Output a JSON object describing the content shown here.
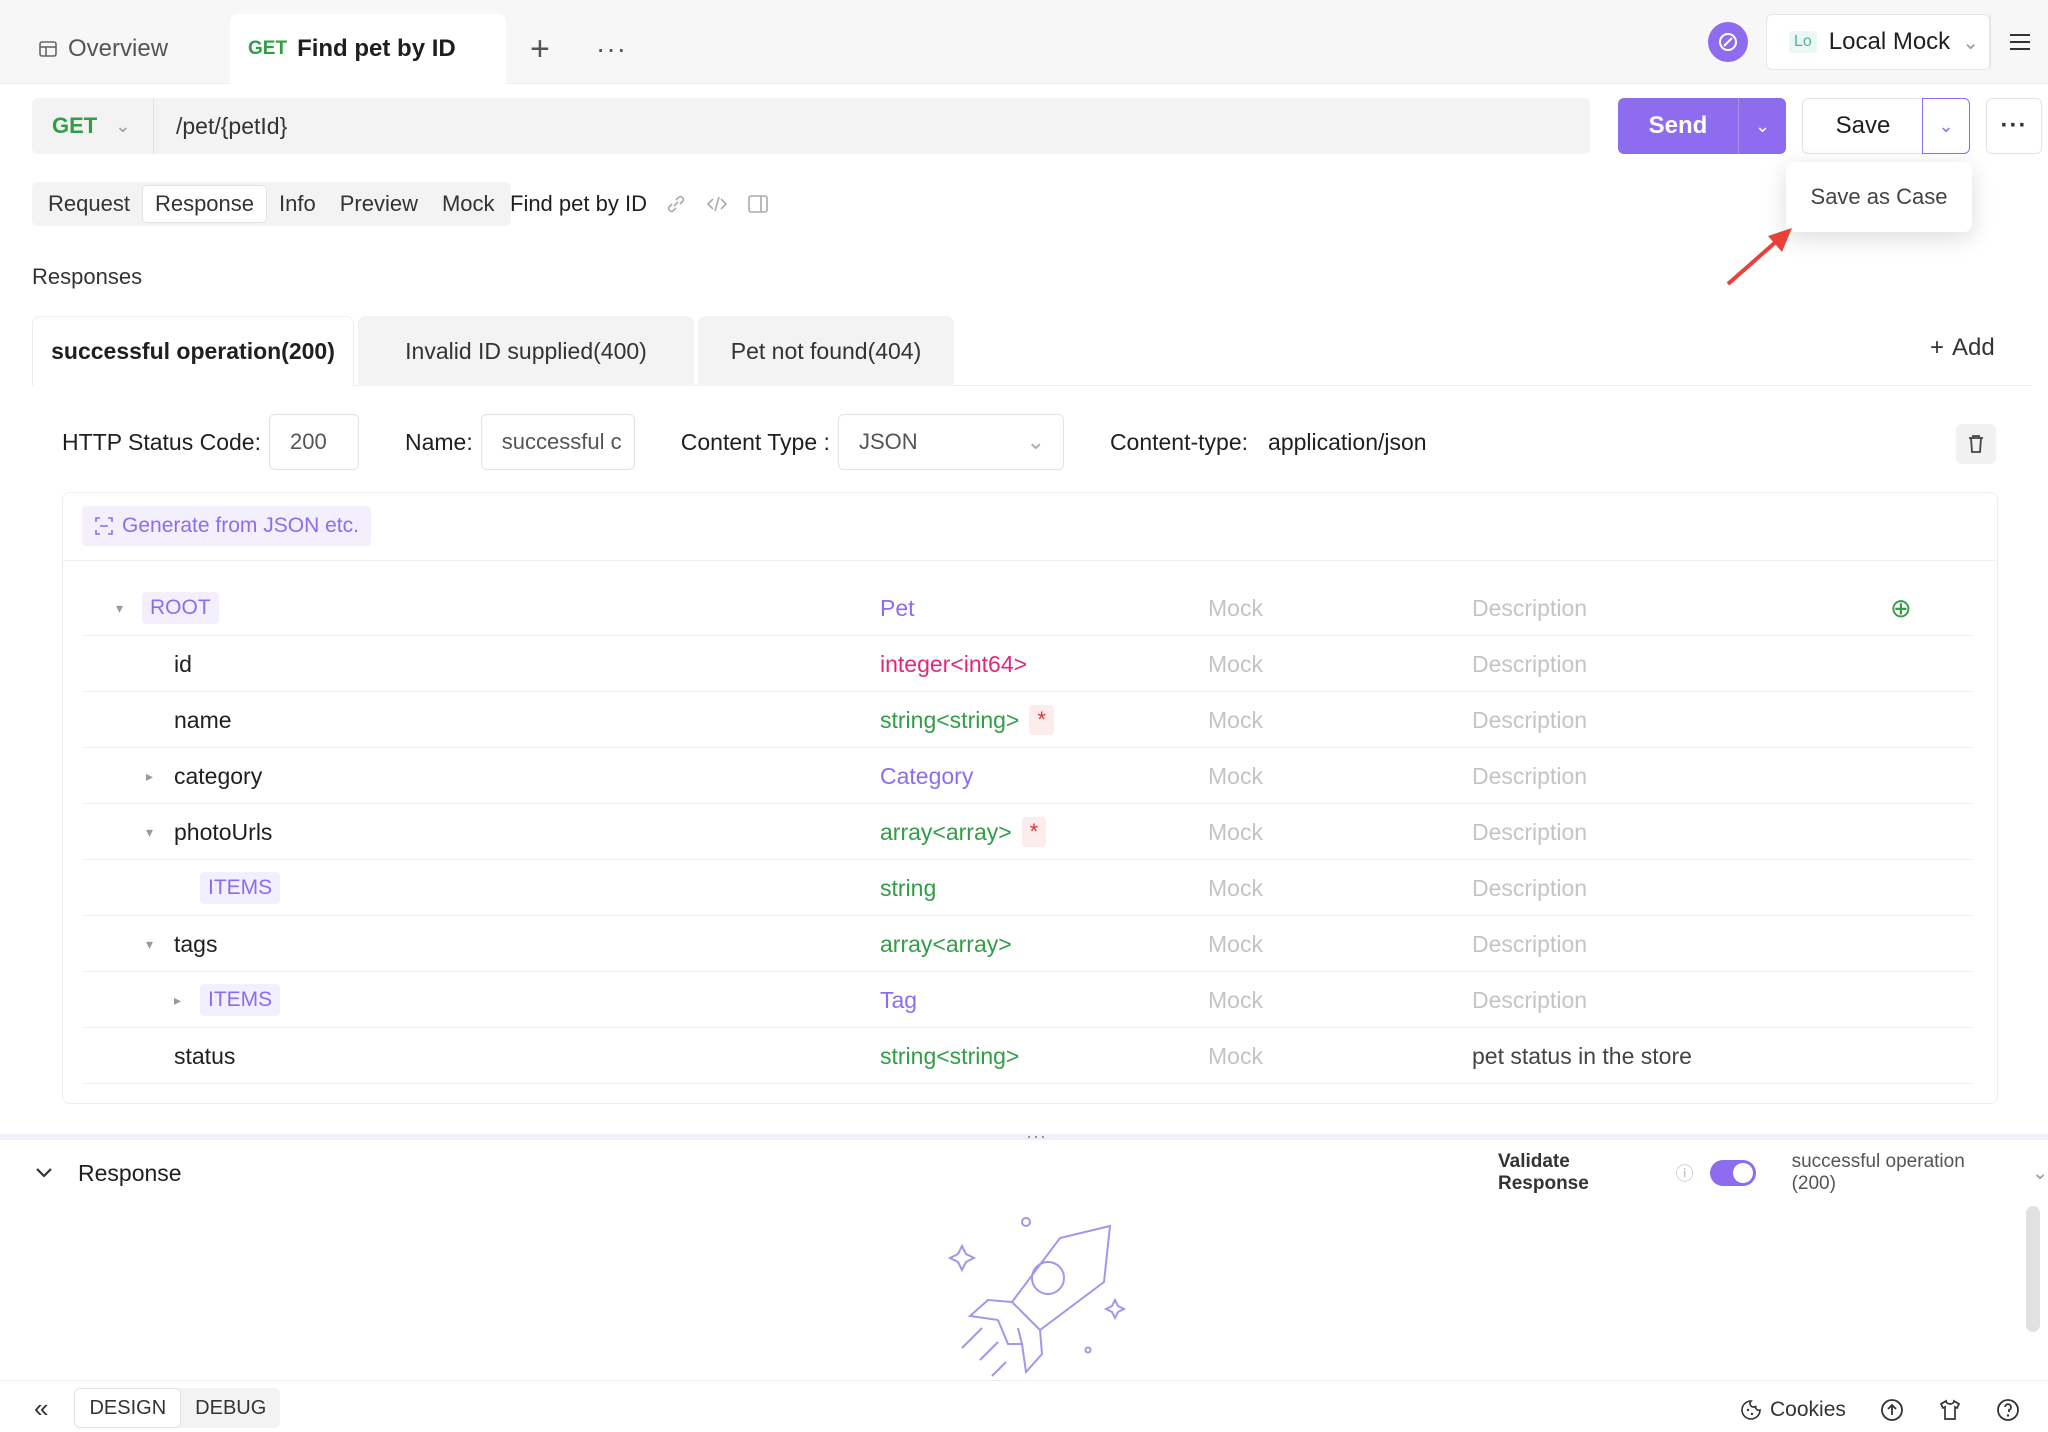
{
  "tabs": {
    "overview": "Overview",
    "active_method": "GET",
    "active_title": "Find pet by ID",
    "add": "+",
    "more": "···"
  },
  "env": {
    "badge": "Lo",
    "name": "Local Mock"
  },
  "request": {
    "method": "GET",
    "url": "/pet/{petId}"
  },
  "actions": {
    "send": "Send",
    "save": "Save",
    "more": "···",
    "save_as_case": "Save as Case"
  },
  "subtabs": [
    "Request",
    "Response",
    "Info",
    "Preview",
    "Mock"
  ],
  "endpoint_name": "Find pet by ID",
  "responses_label": "Responses",
  "response_tabs": [
    "successful operation(200)",
    "Invalid ID supplied(400)",
    "Pet not found(404)"
  ],
  "add_label": "Add",
  "fields": {
    "status_label": "HTTP Status Code:",
    "status_value": "200",
    "name_label": "Name:",
    "name_value": "successful c",
    "content_type_label": "Content Type :",
    "content_type_value": "JSON",
    "content_type_header_label": "Content-type:",
    "content_type_header_value": "application/json"
  },
  "generate_label": "Generate from JSON etc.",
  "schema_rows": [
    {
      "name": "ROOT",
      "type": "Pet",
      "mock": "Mock",
      "desc": "Description"
    },
    {
      "name": "id",
      "type": "integer<int64>",
      "mock": "Mock",
      "desc": "Description"
    },
    {
      "name": "name",
      "type": "string<string>",
      "required": "*",
      "mock": "Mock",
      "desc": "Description"
    },
    {
      "name": "category",
      "type": "Category",
      "mock": "Mock",
      "desc": "Description"
    },
    {
      "name": "photoUrls",
      "type": "array<array>",
      "required": "*",
      "mock": "Mock",
      "desc": "Description"
    },
    {
      "name": "ITEMS",
      "type": "string",
      "mock": "Mock",
      "desc": "Description"
    },
    {
      "name": "tags",
      "type": "array<array>",
      "mock": "Mock",
      "desc": "Description"
    },
    {
      "name": "ITEMS",
      "type": "Tag",
      "mock": "Mock",
      "desc": "Description"
    },
    {
      "name": "status",
      "type": "string<string>",
      "mock": "Mock",
      "desc": "pet status in the store"
    }
  ],
  "response_panel": {
    "title": "Response",
    "validate_label": "Validate Response",
    "validate_on": true,
    "selected": "successful operation (200)"
  },
  "footer": {
    "design": "DESIGN",
    "debug": "DEBUG",
    "cookies": "Cookies"
  },
  "colors": {
    "accent": "#8e6cf0",
    "green": "#2f9e44",
    "pink": "#e0287a",
    "red": "#e03131"
  }
}
